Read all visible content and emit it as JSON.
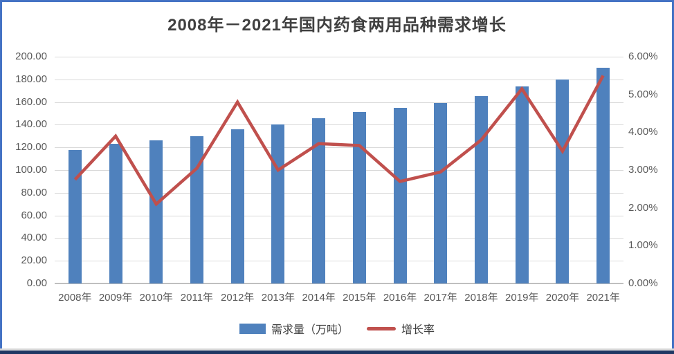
{
  "title": "2008年－2021年国内药食两用品种需求增长",
  "legend": {
    "bar_label": "需求量（万吨）",
    "line_label": "增长率"
  },
  "colors": {
    "bar": "#4F81BD",
    "line": "#C0504D",
    "grid": "#D9D9D9",
    "baseline": "#BFBFBF",
    "axis_text": "#595959",
    "title_text": "#404040",
    "frame_border": "#4472C4",
    "bottom_strip_navy": "#1F3864",
    "bottom_strip_gray": "#D9D9D9"
  },
  "left_axis": {
    "ticks": [
      "200.00",
      "180.00",
      "160.00",
      "140.00",
      "120.00",
      "100.00",
      "80.00",
      "60.00",
      "40.00",
      "20.00",
      "0.00"
    ],
    "min": 0,
    "max": 200,
    "step": 20
  },
  "right_axis": {
    "ticks": [
      "6.00%",
      "5.00%",
      "4.00%",
      "3.00%",
      "2.00%",
      "1.00%",
      "0.00%"
    ],
    "min": 0,
    "max": 6,
    "step": 1
  },
  "chart_data": {
    "type": "bar",
    "subtype": "bar+line combo",
    "title": "2008年－2021年国内药食两用品种需求增长",
    "categories": [
      "2008年",
      "2009年",
      "2010年",
      "2011年",
      "2012年",
      "2013年",
      "2014年",
      "2015年",
      "2016年",
      "2017年",
      "2018年",
      "2019年",
      "2020年",
      "2021年"
    ],
    "series": [
      {
        "name": "需求量（万吨）",
        "type": "bar",
        "axis": "left",
        "color": "#4F81BD",
        "values": [
          118,
          123,
          126,
          130,
          136,
          140,
          146,
          151,
          155,
          159,
          165,
          174,
          180,
          190
        ]
      },
      {
        "name": "增长率",
        "type": "line",
        "axis": "right",
        "color": "#C0504D",
        "values": [
          2.75,
          3.9,
          2.1,
          3.05,
          4.8,
          3.0,
          3.7,
          3.65,
          2.7,
          2.95,
          3.8,
          5.15,
          3.5,
          5.5
        ]
      }
    ],
    "xlabel": "",
    "ylabel_left": "需求量（万吨）",
    "ylabel_right": "增长率",
    "left_ylim": [
      0,
      200
    ],
    "right_ylim": [
      0,
      6
    ],
    "grid": true,
    "legend_position": "bottom"
  }
}
